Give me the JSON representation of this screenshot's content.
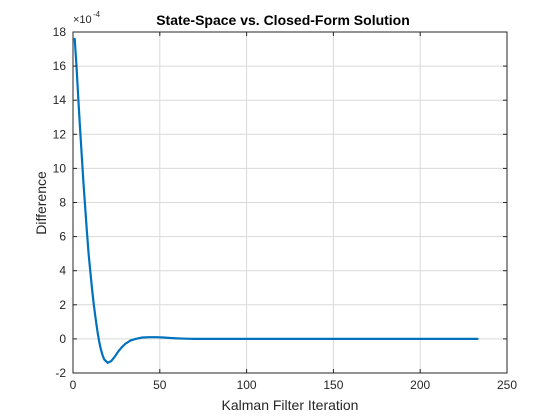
{
  "chart_data": {
    "type": "line",
    "title": "State-Space vs. Closed-Form Solution",
    "xlabel": "Kalman Filter Iteration",
    "ylabel": "Difference",
    "y_exponent_label": "×10",
    "y_exponent_power": "-4",
    "xlim": [
      0,
      250
    ],
    "ylim": [
      -2,
      18
    ],
    "xticks": [
      0,
      50,
      100,
      150,
      200,
      250
    ],
    "yticks": [
      -2,
      0,
      2,
      4,
      6,
      8,
      10,
      12,
      14,
      16,
      18
    ],
    "grid": true,
    "colors": {
      "line": "#0072BD",
      "grid": "#d9d9d9",
      "axis": "#262626"
    },
    "series": [
      {
        "x": [
          1,
          2,
          3,
          4,
          5,
          6,
          7,
          8,
          9,
          10,
          11,
          12,
          13,
          14,
          15,
          16,
          17,
          18,
          20,
          22,
          24,
          26,
          28,
          30,
          33,
          36,
          40,
          44,
          48,
          52,
          56,
          60,
          65,
          70,
          80,
          90,
          100,
          120,
          140,
          160,
          180,
          200,
          220,
          233
        ],
        "values": [
          17.6,
          16.0,
          14.2,
          12.5,
          10.8,
          9.2,
          7.7,
          6.3,
          5.0,
          3.9,
          2.9,
          2.0,
          1.2,
          0.5,
          -0.1,
          -0.6,
          -0.95,
          -1.2,
          -1.4,
          -1.3,
          -1.05,
          -0.75,
          -0.5,
          -0.3,
          -0.1,
          0.0,
          0.08,
          0.1,
          0.1,
          0.08,
          0.05,
          0.03,
          0.01,
          0.0,
          0.0,
          0.0,
          0.0,
          0.0,
          0.0,
          0.0,
          0.0,
          0.0,
          0.0,
          0.0
        ]
      }
    ]
  }
}
